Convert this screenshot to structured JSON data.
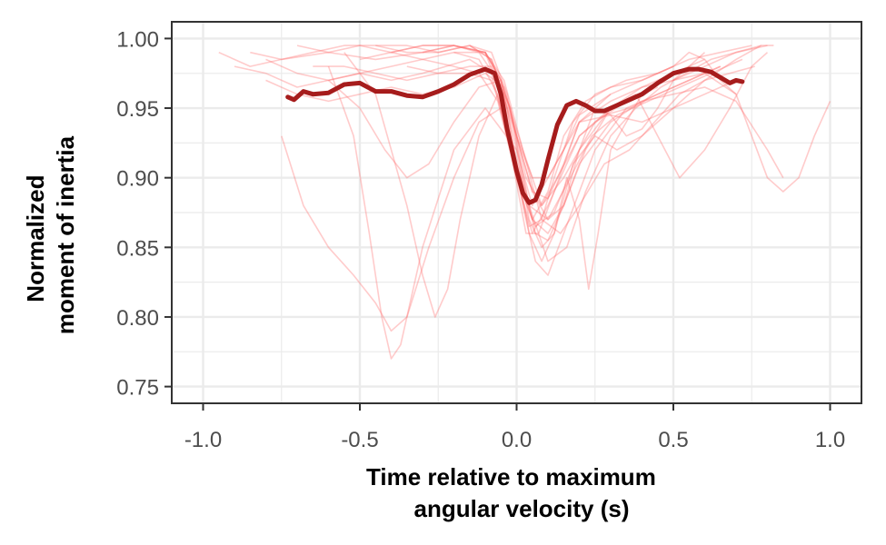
{
  "chart_data": {
    "type": "line",
    "xlabel": [
      "Time relative to maximum",
      "angular velocity (s)"
    ],
    "ylabel": [
      "Normalized",
      "moment of inertia"
    ],
    "xlim": [
      -1.1,
      1.1
    ],
    "ylim": [
      0.738,
      1.012
    ],
    "x_ticks": [
      -1.0,
      -0.5,
      0.0,
      0.5,
      1.0
    ],
    "x_tick_labels": [
      "-1.0",
      "-0.5",
      "0.0",
      "0.5",
      "1.0"
    ],
    "y_ticks": [
      0.75,
      0.8,
      0.85,
      0.9,
      0.95,
      1.0
    ],
    "y_tick_labels": [
      "0.75",
      "0.80",
      "0.85",
      "0.90",
      "0.95",
      "1.00"
    ],
    "grid": true,
    "legend": "none",
    "colors": {
      "individual": "#ff6b6b",
      "mean": "#a61c1c",
      "panel_border": "#333333",
      "grid": "#ebebeb"
    },
    "mean_series": {
      "x": [
        -0.73,
        -0.71,
        -0.68,
        -0.65,
        -0.6,
        -0.55,
        -0.5,
        -0.45,
        -0.4,
        -0.35,
        -0.3,
        -0.25,
        -0.2,
        -0.15,
        -0.1,
        -0.07,
        -0.05,
        -0.03,
        0.0,
        0.02,
        0.04,
        0.06,
        0.08,
        0.1,
        0.13,
        0.16,
        0.19,
        0.22,
        0.25,
        0.28,
        0.32,
        0.36,
        0.4,
        0.45,
        0.5,
        0.55,
        0.58,
        0.62,
        0.65,
        0.68,
        0.7,
        0.72
      ],
      "y": [
        0.958,
        0.956,
        0.962,
        0.96,
        0.961,
        0.967,
        0.968,
        0.962,
        0.962,
        0.959,
        0.958,
        0.962,
        0.967,
        0.974,
        0.978,
        0.975,
        0.96,
        0.935,
        0.905,
        0.889,
        0.882,
        0.884,
        0.895,
        0.913,
        0.938,
        0.952,
        0.955,
        0.952,
        0.948,
        0.948,
        0.952,
        0.956,
        0.96,
        0.968,
        0.975,
        0.978,
        0.978,
        0.976,
        0.972,
        0.968,
        0.97,
        0.969
      ]
    },
    "individual_series": [
      {
        "x": [
          -0.95,
          -0.85,
          -0.75,
          -0.6,
          -0.45,
          -0.3,
          -0.2,
          -0.1,
          -0.05,
          0.0,
          0.04,
          0.08,
          0.12,
          0.18,
          0.25,
          0.35,
          0.45,
          0.55,
          0.65,
          0.75
        ],
        "y": [
          0.99,
          0.98,
          0.985,
          0.99,
          0.985,
          0.99,
          0.995,
          0.99,
          0.96,
          0.9,
          0.865,
          0.87,
          0.9,
          0.94,
          0.96,
          0.97,
          0.975,
          0.985,
          0.99,
          0.995
        ]
      },
      {
        "x": [
          -0.9,
          -0.8,
          -0.7,
          -0.6,
          -0.5,
          -0.4,
          -0.3,
          -0.15,
          -0.08,
          -0.02,
          0.03,
          0.07,
          0.12,
          0.2,
          0.3,
          0.4,
          0.5,
          0.6,
          0.7,
          0.8
        ],
        "y": [
          0.98,
          0.975,
          0.965,
          0.97,
          0.975,
          0.97,
          0.975,
          0.985,
          0.975,
          0.92,
          0.86,
          0.86,
          0.89,
          0.94,
          0.955,
          0.965,
          0.97,
          0.98,
          0.99,
          0.995
        ]
      },
      {
        "x": [
          -0.75,
          -0.68,
          -0.6,
          -0.52,
          -0.45,
          -0.4,
          -0.35,
          -0.28,
          -0.2,
          -0.12,
          -0.05,
          0.0,
          0.05,
          0.1,
          0.2,
          0.3,
          0.4
        ],
        "y": [
          0.93,
          0.88,
          0.85,
          0.83,
          0.81,
          0.79,
          0.8,
          0.85,
          0.9,
          0.94,
          0.95,
          0.9,
          0.86,
          0.88,
          0.93,
          0.95,
          0.96
        ]
      },
      {
        "x": [
          -0.6,
          -0.52,
          -0.47,
          -0.43,
          -0.4,
          -0.37,
          -0.3,
          -0.2,
          -0.1,
          0.0,
          0.05,
          0.1,
          0.2,
          0.3
        ],
        "y": [
          0.98,
          0.93,
          0.86,
          0.8,
          0.77,
          0.78,
          0.85,
          0.92,
          0.95,
          0.92,
          0.88,
          0.9,
          0.94,
          0.96
        ]
      },
      {
        "x": [
          -0.55,
          -0.45,
          -0.35,
          -0.3,
          -0.26,
          -0.22,
          -0.18,
          -0.12,
          -0.06,
          0.0,
          0.05,
          0.1,
          0.15,
          0.22,
          0.3,
          0.4,
          0.5
        ],
        "y": [
          0.99,
          0.96,
          0.88,
          0.83,
          0.8,
          0.82,
          0.87,
          0.93,
          0.96,
          0.9,
          0.87,
          0.89,
          0.93,
          0.955,
          0.965,
          0.97,
          0.98
        ]
      },
      {
        "x": [
          -0.5,
          -0.4,
          -0.3,
          -0.2,
          -0.1,
          -0.05,
          0.0,
          0.04,
          0.08,
          0.12,
          0.16,
          0.2,
          0.23,
          0.26,
          0.3,
          0.4,
          0.5,
          0.6
        ],
        "y": [
          0.985,
          0.99,
          0.995,
          0.995,
          0.99,
          0.97,
          0.92,
          0.87,
          0.85,
          0.86,
          0.9,
          0.87,
          0.82,
          0.86,
          0.92,
          0.96,
          0.975,
          0.985
        ]
      },
      {
        "x": [
          -0.85,
          -0.75,
          -0.65,
          -0.55,
          -0.45,
          -0.35,
          -0.25,
          -0.15,
          -0.08,
          -0.03,
          0.02,
          0.06,
          0.1,
          0.15,
          0.25,
          0.35,
          0.45,
          0.55,
          0.65
        ],
        "y": [
          0.99,
          0.985,
          0.99,
          0.995,
          0.995,
          0.99,
          0.99,
          0.995,
          0.985,
          0.95,
          0.88,
          0.84,
          0.83,
          0.86,
          0.92,
          0.95,
          0.96,
          0.97,
          0.98
        ]
      },
      {
        "x": [
          -0.8,
          -0.7,
          -0.6,
          -0.5,
          -0.4,
          -0.3,
          -0.2,
          -0.1,
          -0.04,
          0.0,
          0.05,
          0.1,
          0.15,
          0.2,
          0.3,
          0.4,
          0.5,
          0.6,
          0.7
        ],
        "y": [
          0.97,
          0.96,
          0.955,
          0.96,
          0.965,
          0.96,
          0.965,
          0.975,
          0.965,
          0.93,
          0.89,
          0.885,
          0.91,
          0.94,
          0.945,
          0.94,
          0.95,
          0.96,
          0.97
        ]
      },
      {
        "x": [
          -0.7,
          -0.6,
          -0.5,
          -0.4,
          -0.3,
          -0.2,
          -0.1,
          -0.05,
          0.0,
          0.04,
          0.08,
          0.12,
          0.18,
          0.25,
          0.32,
          0.4,
          0.5,
          0.6,
          0.7,
          0.78
        ],
        "y": [
          0.995,
          0.99,
          0.995,
          0.99,
          0.995,
          0.995,
          0.99,
          0.97,
          0.91,
          0.86,
          0.84,
          0.86,
          0.91,
          0.93,
          0.92,
          0.93,
          0.95,
          0.97,
          0.985,
          0.995
        ]
      },
      {
        "x": [
          -0.65,
          -0.55,
          -0.45,
          -0.35,
          -0.25,
          -0.15,
          -0.08,
          -0.02,
          0.03,
          0.08,
          0.13,
          0.2,
          0.28,
          0.36,
          0.45,
          0.55,
          0.65
        ],
        "y": [
          0.98,
          0.98,
          0.975,
          0.97,
          0.975,
          0.98,
          0.98,
          0.95,
          0.9,
          0.88,
          0.9,
          0.93,
          0.945,
          0.95,
          0.96,
          0.97,
          0.98
        ]
      },
      {
        "x": [
          -0.45,
          -0.35,
          -0.25,
          -0.15,
          -0.08,
          -0.03,
          0.02,
          0.06,
          0.1,
          0.15,
          0.2,
          0.3,
          0.4,
          0.5,
          0.6,
          0.7,
          0.8,
          0.85
        ],
        "y": [
          0.995,
          0.995,
          0.99,
          0.995,
          0.99,
          0.96,
          0.9,
          0.86,
          0.855,
          0.88,
          0.91,
          0.94,
          0.955,
          0.96,
          0.965,
          0.955,
          0.92,
          0.9
        ]
      },
      {
        "x": [
          -0.4,
          -0.3,
          -0.2,
          -0.1,
          -0.05,
          0.0,
          0.05,
          0.1,
          0.15,
          0.2,
          0.3,
          0.4,
          0.5,
          0.55,
          0.6,
          0.65,
          0.7
        ],
        "y": [
          0.99,
          0.985,
          0.99,
          0.99,
          0.97,
          0.93,
          0.9,
          0.9,
          0.92,
          0.945,
          0.96,
          0.97,
          0.98,
          0.99,
          0.985,
          0.97,
          0.96
        ]
      },
      {
        "x": [
          -0.3,
          -0.2,
          -0.12,
          -0.06,
          0.0,
          0.05,
          0.1,
          0.15,
          0.22,
          0.3,
          0.38,
          0.45,
          0.52,
          0.6,
          0.68,
          0.75,
          0.8
        ],
        "y": [
          0.99,
          0.995,
          0.99,
          0.97,
          0.93,
          0.89,
          0.87,
          0.88,
          0.92,
          0.95,
          0.96,
          0.93,
          0.9,
          0.92,
          0.95,
          0.98,
          0.99
        ]
      },
      {
        "x": [
          -0.2,
          -0.12,
          -0.06,
          0.0,
          0.05,
          0.1,
          0.15,
          0.2,
          0.25,
          0.3,
          0.35,
          0.4,
          0.45,
          0.5,
          0.55,
          0.6
        ],
        "y": [
          0.99,
          0.985,
          0.96,
          0.91,
          0.87,
          0.86,
          0.88,
          0.92,
          0.95,
          0.945,
          0.93,
          0.935,
          0.95,
          0.97,
          0.98,
          0.99
        ]
      },
      {
        "x": [
          0.5,
          0.6,
          0.7,
          0.75,
          0.8,
          0.85,
          0.9,
          0.95,
          1.0
        ],
        "y": [
          0.97,
          0.975,
          0.96,
          0.93,
          0.9,
          0.89,
          0.9,
          0.93,
          0.955
        ]
      },
      {
        "x": [
          -0.1,
          -0.04,
          0.02,
          0.08,
          0.14,
          0.2,
          0.28,
          0.36,
          0.44,
          0.52,
          0.6,
          0.68,
          0.76
        ],
        "y": [
          0.99,
          0.97,
          0.92,
          0.87,
          0.86,
          0.88,
          0.91,
          0.92,
          0.94,
          0.96,
          0.97,
          0.975,
          0.98
        ]
      },
      {
        "x": [
          -0.8,
          -0.7,
          -0.6,
          -0.5,
          -0.4,
          -0.3,
          -0.2,
          -0.12,
          -0.06,
          0.0,
          0.06,
          0.12,
          0.2,
          0.3,
          0.4,
          0.5
        ],
        "y": [
          0.985,
          0.975,
          0.97,
          0.975,
          0.98,
          0.985,
          0.98,
          0.975,
          0.955,
          0.9,
          0.865,
          0.875,
          0.92,
          0.95,
          0.965,
          0.975
        ]
      },
      {
        "x": [
          -0.6,
          -0.5,
          -0.42,
          -0.35,
          -0.28,
          -0.2,
          -0.12,
          -0.05,
          0.02,
          0.08,
          0.15,
          0.25,
          0.35,
          0.45
        ],
        "y": [
          0.97,
          0.95,
          0.92,
          0.9,
          0.91,
          0.94,
          0.965,
          0.97,
          0.92,
          0.88,
          0.9,
          0.94,
          0.955,
          0.965
        ]
      },
      {
        "x": [
          -0.15,
          -0.08,
          -0.02,
          0.04,
          0.1,
          0.16,
          0.22,
          0.3,
          0.38,
          0.46,
          0.54,
          0.62,
          0.7,
          0.78,
          0.82
        ],
        "y": [
          0.995,
          0.985,
          0.95,
          0.88,
          0.84,
          0.85,
          0.89,
          0.93,
          0.95,
          0.965,
          0.975,
          0.985,
          0.99,
          0.995,
          0.995
        ]
      },
      {
        "x": [
          -0.35,
          -0.25,
          -0.15,
          -0.08,
          -0.02,
          0.04,
          0.1,
          0.16,
          0.24,
          0.32,
          0.42,
          0.52,
          0.62,
          0.72
        ],
        "y": [
          0.98,
          0.975,
          0.975,
          0.97,
          0.93,
          0.88,
          0.87,
          0.895,
          0.93,
          0.945,
          0.955,
          0.965,
          0.975,
          0.985
        ]
      }
    ]
  }
}
